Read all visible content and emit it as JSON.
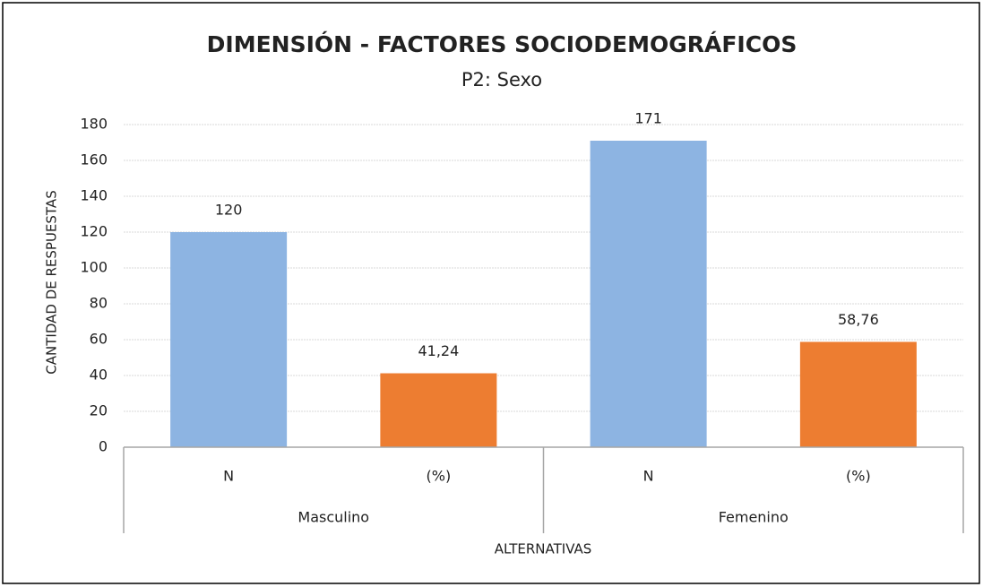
{
  "chart_data": {
    "type": "bar",
    "title": "DIMENSIÓN - FACTORES SOCIODEMOGRÁFICOS",
    "subtitle": "P2: Sexo",
    "x_label": "ALTERNATIVAS",
    "y_label": "CANTIDAD DE RESPUESTAS",
    "groups": [
      "Masculino",
      "Femenino"
    ],
    "categories": [
      "N",
      "(%)",
      "N",
      "(%)"
    ],
    "values": [
      120,
      41.24,
      171,
      58.76
    ],
    "value_labels": [
      "120",
      "41,24",
      "171",
      "58,76"
    ],
    "colors": [
      "#8db4e2",
      "#ed7d31",
      "#8db4e2",
      "#ed7d31"
    ],
    "ylim": [
      0,
      180
    ],
    "yticks": [
      0,
      20,
      40,
      60,
      80,
      100,
      120,
      140,
      160,
      180
    ],
    "grid": true
  }
}
